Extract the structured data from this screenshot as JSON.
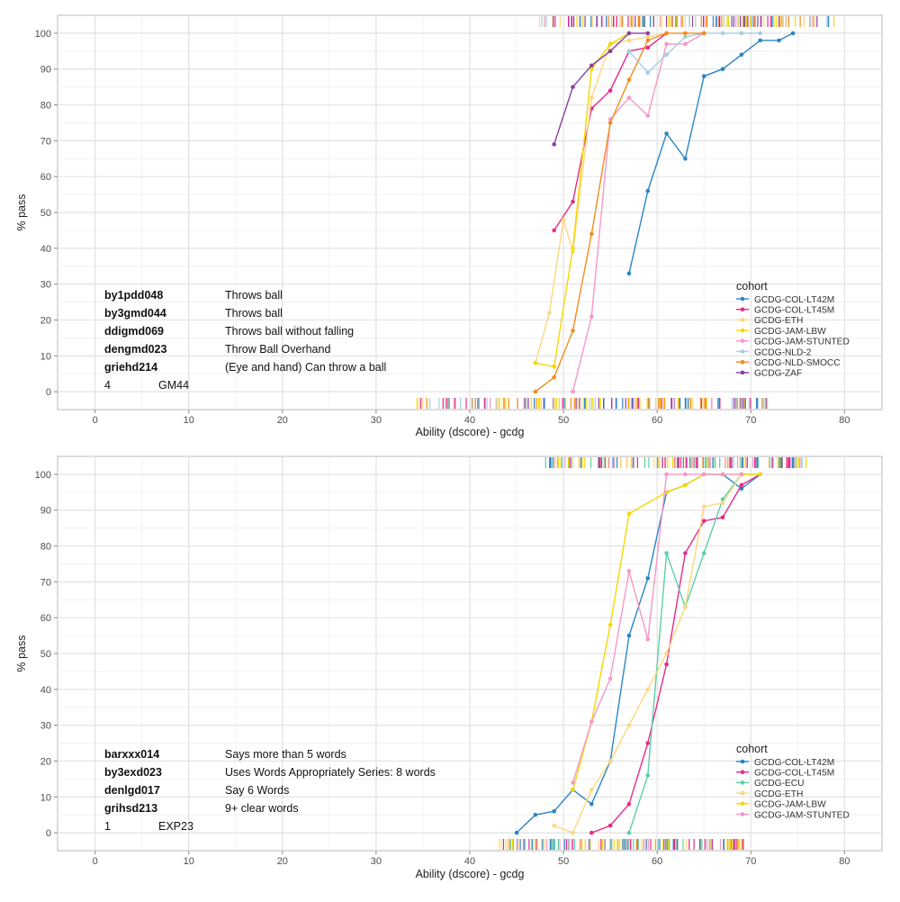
{
  "colors": {
    "GCDG-COL-LT42M": "#2b86c5",
    "GCDG-COL-LT45M": "#e7298a",
    "GCDG-ECU": "#5ccfa7",
    "GCDG-ETH": "#fdd77f",
    "GCDG-JAM-LBW": "#f5d800",
    "GCDG-JAM-STUNTED": "#f598c9",
    "GCDG-NLD-2": "#a6cee3",
    "GCDG-NLD-SMOCC": "#f28c1e",
    "GCDG-ZAF": "#8b3f9e"
  },
  "chart_data": [
    {
      "type": "line",
      "xlabel": "Ability (dscore) - gcdg",
      "ylabel": "% pass",
      "xlim": [
        -4,
        84
      ],
      "ylim": [
        -5,
        105
      ],
      "xticks": [
        0,
        10,
        20,
        30,
        40,
        50,
        60,
        70,
        80
      ],
      "yticks": [
        0,
        10,
        20,
        30,
        40,
        50,
        60,
        70,
        80,
        90,
        100
      ],
      "grid": true,
      "legend_title": "cohort",
      "legend_position": "right",
      "items": [
        {
          "code": "by1pdd048",
          "label": "Throws ball"
        },
        {
          "code": "by3gmd044",
          "label": "Throws ball"
        },
        {
          "code": "ddigmd069",
          "label": "Throws ball without falling"
        },
        {
          "code": "dengmd023",
          "label": "Throw Ball Overhand"
        },
        {
          "code": "griehd214",
          "label": "(Eye and hand) Can throw a ball"
        }
      ],
      "footer": {
        "number": "4",
        "code": "GM44"
      },
      "series": [
        {
          "name": "GCDG-COL-LT42M",
          "x": [
            57,
            59,
            61,
            63,
            65,
            67,
            69,
            71,
            73,
            74.5
          ],
          "y": [
            33,
            56,
            72,
            65,
            88,
            90,
            94,
            98,
            98,
            100
          ]
        },
        {
          "name": "GCDG-COL-LT45M",
          "x": [
            49,
            51,
            53,
            55,
            57,
            59,
            61
          ],
          "y": [
            45,
            53,
            79,
            84,
            95,
            96,
            100
          ]
        },
        {
          "name": "GCDG-ETH",
          "x": [
            47,
            48.5,
            50,
            51,
            53,
            55,
            57,
            59,
            61
          ],
          "y": [
            8,
            22,
            48,
            39,
            82,
            97,
            98,
            99,
            100
          ]
        },
        {
          "name": "GCDG-JAM-LBW",
          "x": [
            47,
            49,
            51,
            53,
            55,
            57
          ],
          "y": [
            8,
            7,
            40,
            90,
            97,
            100
          ]
        },
        {
          "name": "GCDG-JAM-STUNTED",
          "x": [
            51,
            53,
            55,
            57,
            59,
            61,
            63,
            65
          ],
          "y": [
            0,
            21,
            76,
            82,
            77,
            97,
            97,
            100
          ]
        },
        {
          "name": "GCDG-NLD-2",
          "x": [
            57,
            59,
            61,
            63,
            65,
            67,
            69,
            71
          ],
          "y": [
            95,
            89,
            94,
            99,
            100,
            100,
            100,
            100
          ]
        },
        {
          "name": "GCDG-NLD-SMOCC",
          "x": [
            47,
            49,
            51,
            53,
            55,
            57,
            59,
            61,
            63,
            65
          ],
          "y": [
            0,
            4,
            17,
            44,
            75,
            87,
            98,
            100,
            100,
            100
          ]
        },
        {
          "name": "GCDG-ZAF",
          "x": [
            49,
            51,
            53,
            55,
            57,
            59
          ],
          "y": [
            69,
            85,
            91,
            95,
            100,
            100
          ]
        }
      ],
      "rug_top_range": [
        47,
        79
      ],
      "rug_bottom_range": [
        34,
        72
      ]
    },
    {
      "type": "line",
      "xlabel": "Ability (dscore) - gcdg",
      "ylabel": "% pass",
      "xlim": [
        -4,
        84
      ],
      "ylim": [
        -5,
        105
      ],
      "xticks": [
        0,
        10,
        20,
        30,
        40,
        50,
        60,
        70,
        80
      ],
      "yticks": [
        0,
        10,
        20,
        30,
        40,
        50,
        60,
        70,
        80,
        90,
        100
      ],
      "grid": true,
      "legend_title": "cohort",
      "legend_position": "right",
      "items": [
        {
          "code": "barxxx014",
          "label": "Says more than 5 words"
        },
        {
          "code": "by3exd023",
          "label": "Uses Words Appropriately Series: 8 words"
        },
        {
          "code": "denlgd017",
          "label": "Say 6 Words"
        },
        {
          "code": "grihsd213",
          "label": "9+  clear words"
        }
      ],
      "footer": {
        "number": "1",
        "code": "EXP23"
      },
      "series": [
        {
          "name": "GCDG-COL-LT42M",
          "x": [
            45,
            47,
            49,
            51,
            53,
            55,
            57,
            59,
            61,
            63,
            65,
            67,
            69,
            71
          ],
          "y": [
            0,
            5,
            6,
            12,
            8,
            20,
            55,
            71,
            95,
            97,
            100,
            100,
            96,
            100
          ]
        },
        {
          "name": "GCDG-COL-LT45M",
          "x": [
            53,
            55,
            57,
            59,
            61,
            63,
            65,
            67,
            69,
            71
          ],
          "y": [
            0,
            2,
            8,
            25,
            47,
            78,
            87,
            88,
            97,
            100
          ]
        },
        {
          "name": "GCDG-ECU",
          "x": [
            57,
            59,
            61,
            63,
            65,
            67,
            69,
            71
          ],
          "y": [
            0,
            16,
            78,
            63,
            78,
            93,
            100,
            100
          ]
        },
        {
          "name": "GCDG-ETH",
          "x": [
            49,
            51,
            53,
            55,
            57,
            59,
            61,
            63,
            65,
            67,
            69,
            71
          ],
          "y": [
            2,
            0,
            12,
            20,
            30,
            40,
            50,
            63,
            91,
            92,
            100,
            100
          ]
        },
        {
          "name": "GCDG-JAM-LBW",
          "x": [
            51,
            53,
            55,
            57,
            61,
            63,
            65,
            67,
            69,
            71
          ],
          "y": [
            12,
            31,
            58,
            89,
            95,
            97,
            100,
            100,
            100,
            100
          ]
        },
        {
          "name": "GCDG-JAM-STUNTED",
          "x": [
            51,
            53,
            55,
            57,
            59,
            61,
            63,
            65,
            67,
            69
          ],
          "y": [
            14,
            31,
            43,
            73,
            54,
            100,
            100,
            100,
            100,
            100
          ]
        }
      ],
      "rug_top_range": [
        48,
        76
      ],
      "rug_bottom_range": [
        43,
        70
      ]
    }
  ]
}
